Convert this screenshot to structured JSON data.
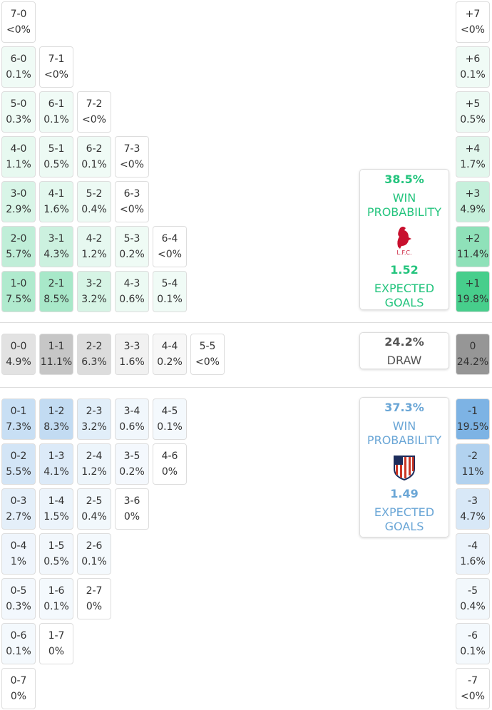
{
  "home": {
    "rows": [
      [
        {
          "score": "7-0",
          "prob": "<0%"
        }
      ],
      [
        {
          "score": "6-0",
          "prob": "0.1%"
        },
        {
          "score": "7-1",
          "prob": "<0%"
        }
      ],
      [
        {
          "score": "5-0",
          "prob": "0.3%"
        },
        {
          "score": "6-1",
          "prob": "0.1%"
        },
        {
          "score": "7-2",
          "prob": "<0%"
        }
      ],
      [
        {
          "score": "4-0",
          "prob": "1.1%"
        },
        {
          "score": "5-1",
          "prob": "0.5%"
        },
        {
          "score": "6-2",
          "prob": "0.1%"
        },
        {
          "score": "7-3",
          "prob": "<0%"
        }
      ],
      [
        {
          "score": "3-0",
          "prob": "2.9%"
        },
        {
          "score": "4-1",
          "prob": "1.6%"
        },
        {
          "score": "5-2",
          "prob": "0.4%"
        },
        {
          "score": "6-3",
          "prob": "<0%"
        }
      ],
      [
        {
          "score": "2-0",
          "prob": "5.7%"
        },
        {
          "score": "3-1",
          "prob": "4.3%"
        },
        {
          "score": "4-2",
          "prob": "1.2%"
        },
        {
          "score": "5-3",
          "prob": "0.2%"
        },
        {
          "score": "6-4",
          "prob": "<0%"
        }
      ],
      [
        {
          "score": "1-0",
          "prob": "7.5%"
        },
        {
          "score": "2-1",
          "prob": "8.5%"
        },
        {
          "score": "3-2",
          "prob": "3.2%"
        },
        {
          "score": "4-3",
          "prob": "0.6%"
        },
        {
          "score": "5-4",
          "prob": "0.1%"
        }
      ]
    ],
    "margins": [
      {
        "score": "+7",
        "prob": "<0%"
      },
      {
        "score": "+6",
        "prob": "0.1%"
      },
      {
        "score": "+5",
        "prob": "0.5%"
      },
      {
        "score": "+4",
        "prob": "1.7%"
      },
      {
        "score": "+3",
        "prob": "4.9%"
      },
      {
        "score": "+2",
        "prob": "11.4%"
      },
      {
        "score": "+1",
        "prob": "19.8%"
      }
    ],
    "summary": {
      "win_pct": "38.5%",
      "win_label": "WIN PROBABILITY",
      "xg": "1.52",
      "xg_label": "EXPECTED GOALS"
    }
  },
  "draw": {
    "row": [
      {
        "score": "0-0",
        "prob": "4.9%"
      },
      {
        "score": "1-1",
        "prob": "11.1%"
      },
      {
        "score": "2-2",
        "prob": "6.3%"
      },
      {
        "score": "3-3",
        "prob": "1.6%"
      },
      {
        "score": "4-4",
        "prob": "0.2%"
      },
      {
        "score": "5-5",
        "prob": "<0%"
      }
    ],
    "margin": {
      "score": "0",
      "prob": "24.2%"
    },
    "summary": {
      "pct": "24.2%",
      "label": "DRAW"
    }
  },
  "away": {
    "rows": [
      [
        {
          "score": "0-1",
          "prob": "7.3%"
        },
        {
          "score": "1-2",
          "prob": "8.3%"
        },
        {
          "score": "2-3",
          "prob": "3.2%"
        },
        {
          "score": "3-4",
          "prob": "0.6%"
        },
        {
          "score": "4-5",
          "prob": "0.1%"
        }
      ],
      [
        {
          "score": "0-2",
          "prob": "5.5%"
        },
        {
          "score": "1-3",
          "prob": "4.1%"
        },
        {
          "score": "2-4",
          "prob": "1.2%"
        },
        {
          "score": "3-5",
          "prob": "0.2%"
        },
        {
          "score": "4-6",
          "prob": "0%"
        }
      ],
      [
        {
          "score": "0-3",
          "prob": "2.7%"
        },
        {
          "score": "1-4",
          "prob": "1.5%"
        },
        {
          "score": "2-5",
          "prob": "0.4%"
        },
        {
          "score": "3-6",
          "prob": "0%"
        }
      ],
      [
        {
          "score": "0-4",
          "prob": "1%"
        },
        {
          "score": "1-5",
          "prob": "0.5%"
        },
        {
          "score": "2-6",
          "prob": "0.1%"
        }
      ],
      [
        {
          "score": "0-5",
          "prob": "0.3%"
        },
        {
          "score": "1-6",
          "prob": "0.1%"
        },
        {
          "score": "2-7",
          "prob": "0%"
        }
      ],
      [
        {
          "score": "0-6",
          "prob": "0.1%"
        },
        {
          "score": "1-7",
          "prob": "0%"
        }
      ],
      [
        {
          "score": "0-7",
          "prob": "0%"
        }
      ]
    ],
    "margins": [
      {
        "score": "-1",
        "prob": "19.5%"
      },
      {
        "score": "-2",
        "prob": "11%"
      },
      {
        "score": "-3",
        "prob": "4.7%"
      },
      {
        "score": "-4",
        "prob": "1.6%"
      },
      {
        "score": "-5",
        "prob": "0.4%"
      },
      {
        "score": "-6",
        "prob": "0.1%"
      },
      {
        "score": "-7",
        "prob": "<0%"
      }
    ],
    "summary": {
      "win_pct": "37.3%",
      "win_label": "WIN PROBABILITY",
      "xg": "1.49",
      "xg_label": "EXPECTED GOALS"
    }
  }
}
